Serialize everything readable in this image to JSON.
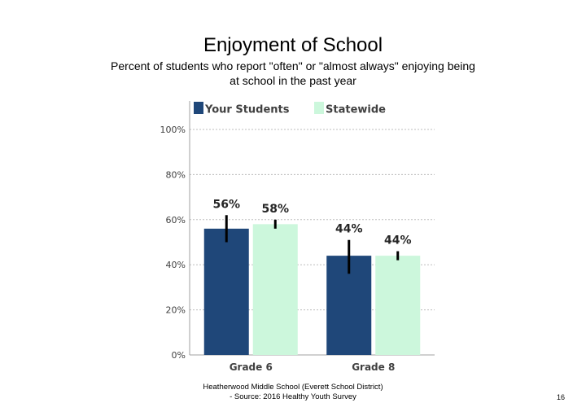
{
  "slide": {
    "title": "Enjoyment of School",
    "subtitle": "Percent of students who report \"often\" or \"almost always\" enjoying being at school in the past year",
    "footer_line1": "Heatherwood Middle School (Everett School District)",
    "footer_line2": "- Source: 2016 Healthy Youth Survey",
    "page_number": "16"
  },
  "chart_data": {
    "type": "bar",
    "categories": [
      "Grade 6",
      "Grade 8"
    ],
    "series": [
      {
        "name": "Your Students",
        "color": "#1f4779",
        "values": [
          56,
          44
        ],
        "labels": [
          "56%",
          "44%"
        ],
        "error": [
          [
            50,
            62
          ],
          [
            36,
            51
          ]
        ]
      },
      {
        "name": "Statewide",
        "color": "#ccf7dc",
        "values": [
          58,
          44
        ],
        "labels": [
          "58%",
          "44%"
        ],
        "error": [
          [
            56,
            60
          ],
          [
            42,
            46
          ]
        ]
      }
    ],
    "y_ticks": [
      "0%",
      "20%",
      "40%",
      "60%",
      "80%",
      "100%"
    ],
    "ylim": [
      0,
      100
    ],
    "grid": true,
    "legend": "top"
  }
}
